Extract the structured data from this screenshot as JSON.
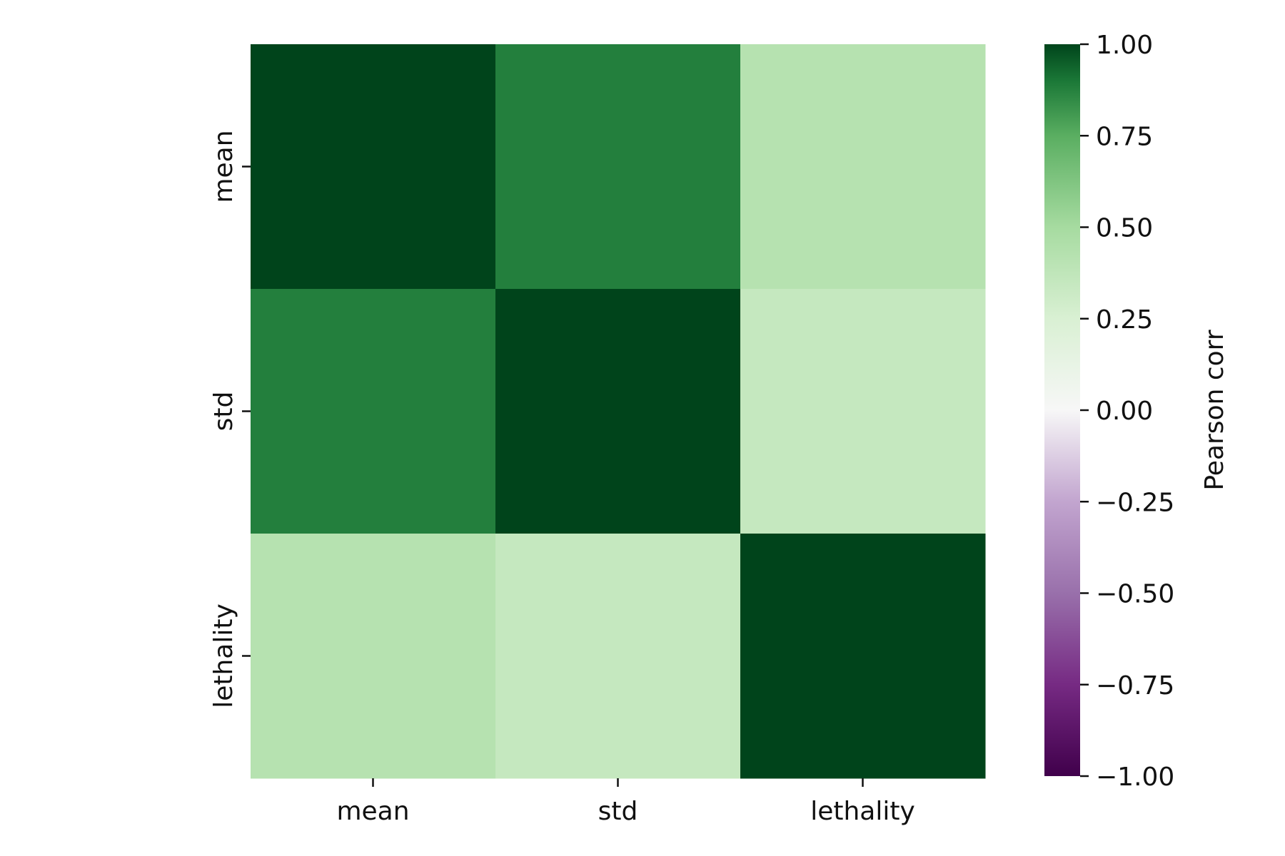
{
  "chart_data": {
    "type": "heatmap",
    "x_categories": [
      "mean",
      "std",
      "lethality"
    ],
    "y_categories": [
      "mean",
      "std",
      "lethality"
    ],
    "values": [
      [
        1.0,
        0.88,
        0.42
      ],
      [
        0.88,
        1.0,
        0.35
      ],
      [
        0.42,
        0.35,
        1.0
      ]
    ],
    "colorbar": {
      "label": "Pearson corr",
      "vmin": -1.0,
      "vmax": 1.0,
      "ticks": [
        1.0,
        0.75,
        0.5,
        0.25,
        0.0,
        -0.25,
        -0.5,
        -0.75,
        -1.0
      ],
      "tick_labels": [
        "1.00",
        "0.75",
        "0.50",
        "0.25",
        "0.00",
        "−0.25",
        "−0.50",
        "−0.75",
        "−1.00"
      ]
    },
    "colormap": {
      "name": "PRGn",
      "stops": [
        [
          -1.0,
          "#40004b"
        ],
        [
          -0.75,
          "#762a83"
        ],
        [
          -0.5,
          "#9970ab"
        ],
        [
          -0.25,
          "#c2a5cf"
        ],
        [
          0.0,
          "#f7f7f7"
        ],
        [
          0.25,
          "#d9f0d3"
        ],
        [
          0.5,
          "#a6dba0"
        ],
        [
          0.75,
          "#5aae61"
        ],
        [
          0.9,
          "#1b7837"
        ],
        [
          1.0,
          "#00441b"
        ]
      ]
    }
  }
}
